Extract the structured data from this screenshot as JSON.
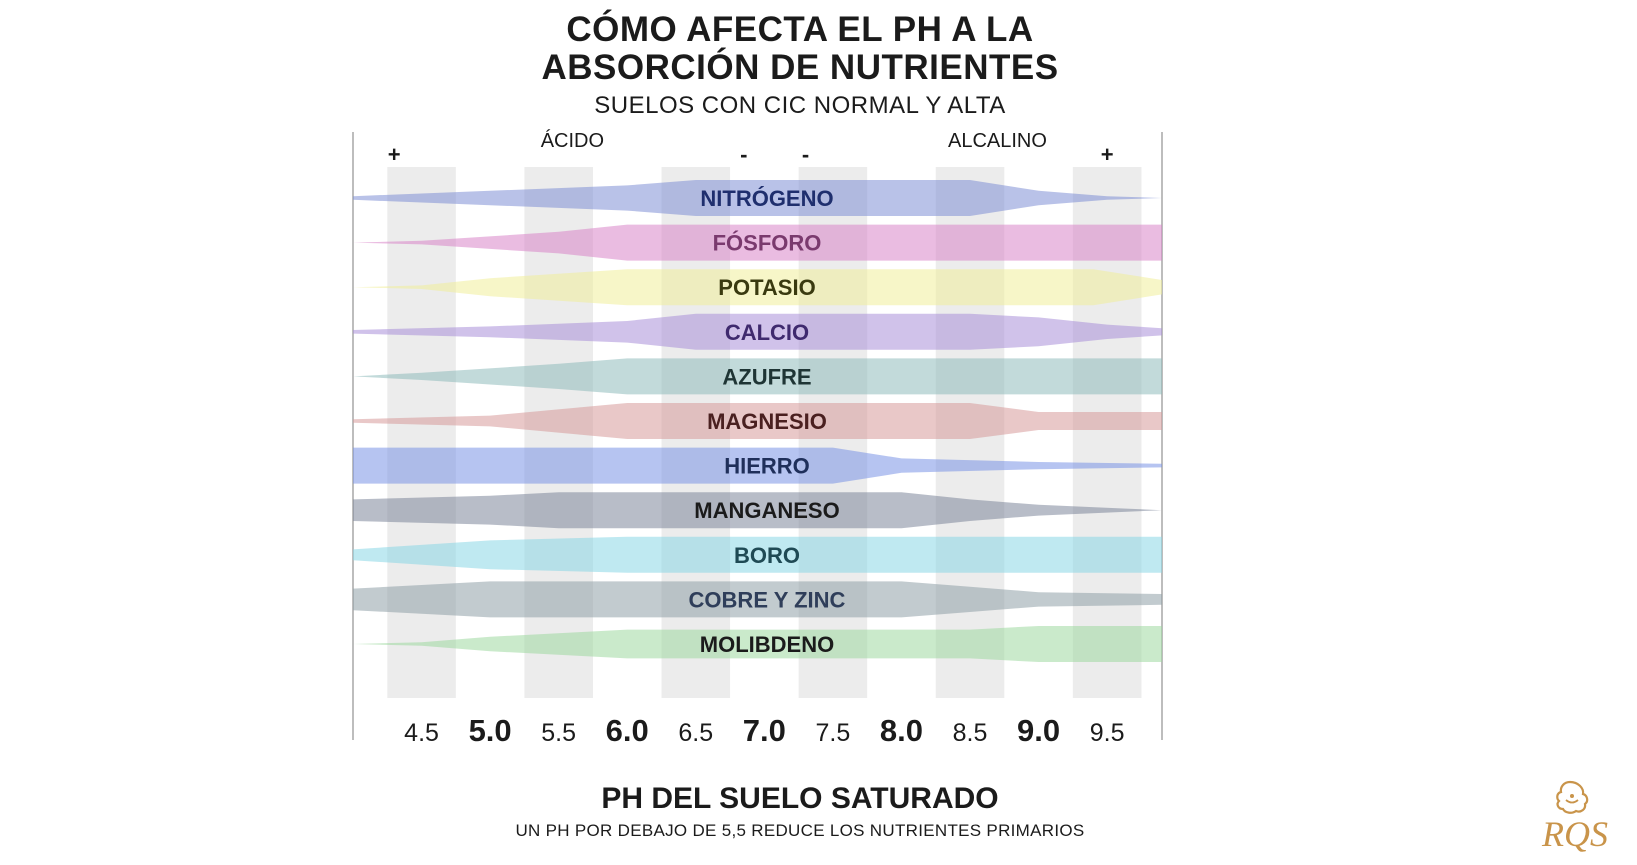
{
  "title_line1": "CÓMO AFECTA EL PH A LA",
  "title_line2": "ABSORCIÓN DE NUTRIENTES",
  "subtitle": "SUELOS CON CIC NORMAL Y ALTA",
  "footer_title": "PH DEL SUELO SATURADO",
  "footer_subtitle": "UN PH POR DEBAJO DE 5,5 REDUCE LOS NUTRIENTES PRIMARIOS",
  "logo_text": "RQS",
  "chart_data": {
    "type": "area",
    "title": "CÓMO AFECTA EL PH A LA ABSORCIÓN DE NUTRIENTES",
    "subtitle": "SUELOS CON CIC NORMAL Y ALTA",
    "xlabel": "PH DEL SUELO SATURADO",
    "xlim": [
      4.0,
      9.9
    ],
    "x_ticks": [
      {
        "value": 4.5,
        "label": "4.5",
        "major": false
      },
      {
        "value": 5.0,
        "label": "5.0",
        "major": true
      },
      {
        "value": 5.5,
        "label": "5.5",
        "major": false
      },
      {
        "value": 6.0,
        "label": "6.0",
        "major": true
      },
      {
        "value": 6.5,
        "label": "6.5",
        "major": false
      },
      {
        "value": 7.0,
        "label": "7.0",
        "major": true
      },
      {
        "value": 7.5,
        "label": "7.5",
        "major": false
      },
      {
        "value": 8.0,
        "label": "8.0",
        "major": true
      },
      {
        "value": 8.5,
        "label": "8.5",
        "major": false
      },
      {
        "value": 9.0,
        "label": "9.0",
        "major": true
      },
      {
        "value": 9.5,
        "label": "9.5",
        "major": false
      }
    ],
    "top_labels": [
      {
        "text": "+",
        "x": 4.3
      },
      {
        "text": "ÁCIDO",
        "x": 5.6
      },
      {
        "text": "-",
        "x": 6.85
      },
      {
        "text": "-",
        "x": 7.3
      },
      {
        "text": "ALCALINO",
        "x": 8.7
      },
      {
        "text": "+",
        "x": 9.5
      }
    ],
    "series": [
      {
        "name": "NITRÓGENO",
        "color": "#7f8fd6",
        "text_color": "#1f2f6e",
        "profile": [
          [
            4.0,
            0.1
          ],
          [
            5.0,
            0.4
          ],
          [
            6.0,
            0.7
          ],
          [
            6.5,
            1.0
          ],
          [
            8.5,
            1.0
          ],
          [
            9.0,
            0.4
          ],
          [
            9.5,
            0.1
          ],
          [
            9.9,
            0.0
          ]
        ]
      },
      {
        "name": "FÓSFORO",
        "color": "#d985c8",
        "text_color": "#7a3a6e",
        "profile": [
          [
            4.0,
            0.0
          ],
          [
            4.5,
            0.1
          ],
          [
            5.5,
            0.6
          ],
          [
            6.0,
            1.0
          ],
          [
            8.5,
            1.0
          ],
          [
            9.0,
            1.0
          ],
          [
            9.9,
            1.0
          ]
        ]
      },
      {
        "name": "POTASIO",
        "color": "#f0ee9a",
        "text_color": "#3a3a10",
        "profile": [
          [
            4.0,
            0.0
          ],
          [
            4.5,
            0.1
          ],
          [
            5.0,
            0.5
          ],
          [
            6.0,
            1.0
          ],
          [
            9.4,
            1.0
          ],
          [
            9.9,
            0.4
          ]
        ]
      },
      {
        "name": "CALCIO",
        "color": "#a98fd8",
        "text_color": "#3f2a6e",
        "profile": [
          [
            4.0,
            0.1
          ],
          [
            5.0,
            0.3
          ],
          [
            6.0,
            0.6
          ],
          [
            6.5,
            1.0
          ],
          [
            8.5,
            1.0
          ],
          [
            9.0,
            0.8
          ],
          [
            9.5,
            0.4
          ],
          [
            9.9,
            0.2
          ]
        ]
      },
      {
        "name": "AZUFRE",
        "color": "#8fbcbc",
        "text_color": "#1f3535",
        "profile": [
          [
            4.0,
            0.0
          ],
          [
            4.5,
            0.2
          ],
          [
            5.5,
            0.7
          ],
          [
            6.0,
            1.0
          ],
          [
            9.9,
            1.0
          ]
        ]
      },
      {
        "name": "MAGNESIO",
        "color": "#d79a9a",
        "text_color": "#4a2020",
        "profile": [
          [
            4.0,
            0.1
          ],
          [
            5.0,
            0.3
          ],
          [
            6.0,
            1.0
          ],
          [
            8.5,
            1.0
          ],
          [
            9.0,
            0.5
          ],
          [
            9.9,
            0.5
          ]
        ]
      },
      {
        "name": "HIERRO",
        "color": "#7a93e6",
        "text_color": "#1f2f5a",
        "profile": [
          [
            4.0,
            1.0
          ],
          [
            7.5,
            1.0
          ],
          [
            8.0,
            0.4
          ],
          [
            9.0,
            0.2
          ],
          [
            9.9,
            0.1
          ]
        ]
      },
      {
        "name": "MANGANESO",
        "color": "#7d879a",
        "text_color": "#1b1b1b",
        "profile": [
          [
            4.0,
            0.6
          ],
          [
            5.0,
            0.8
          ],
          [
            5.5,
            1.0
          ],
          [
            8.0,
            1.0
          ],
          [
            8.5,
            0.6
          ],
          [
            9.0,
            0.3
          ],
          [
            9.9,
            0.0
          ]
        ]
      },
      {
        "name": "BORO",
        "color": "#8ad7e6",
        "text_color": "#1f4a55",
        "profile": [
          [
            4.0,
            0.3
          ],
          [
            5.0,
            0.8
          ],
          [
            6.0,
            1.0
          ],
          [
            8.5,
            1.0
          ],
          [
            9.0,
            1.0
          ],
          [
            9.9,
            1.0
          ]
        ]
      },
      {
        "name": "COBRE Y ZINC",
        "color": "#8fa1a8",
        "text_color": "#2f3e5a",
        "profile": [
          [
            4.0,
            0.6
          ],
          [
            5.0,
            1.0
          ],
          [
            8.0,
            1.0
          ],
          [
            8.5,
            0.7
          ],
          [
            9.0,
            0.4
          ],
          [
            9.9,
            0.3
          ]
        ]
      },
      {
        "name": "MOLIBDENO",
        "color": "#9ed8a0",
        "text_color": "#1b1b1b",
        "profile": [
          [
            4.0,
            0.0
          ],
          [
            4.5,
            0.1
          ],
          [
            5.0,
            0.4
          ],
          [
            6.0,
            0.8
          ],
          [
            8.5,
            0.8
          ],
          [
            9.0,
            1.0
          ],
          [
            9.9,
            1.0
          ]
        ]
      }
    ]
  }
}
